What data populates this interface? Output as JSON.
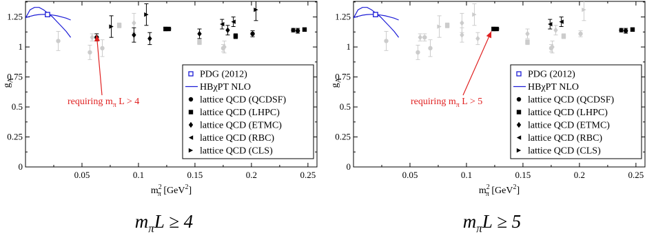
{
  "chart_data": [
    {
      "type": "scatter",
      "xlabel": "m",
      "xlabel_sub": "π",
      "xlabel_sup": "2",
      "xlabel_unit_pre": "[GeV",
      "xlabel_unit_sup": "2",
      "xlabel_unit_post": "]",
      "ylabel": "g",
      "ylabel_sub": "A",
      "xlim": [
        0,
        0.258
      ],
      "ylim": [
        0,
        1.38
      ],
      "xticks": [
        0.05,
        0.1,
        0.15,
        0.2,
        0.25
      ],
      "xtick_labels": [
        "0.05",
        "0.1",
        "0.15",
        "0.2",
        "0.25"
      ],
      "yticks": [
        0,
        0.25,
        0.5,
        0.75,
        1,
        1.25
      ],
      "ytick_labels": [
        "0",
        "0.25",
        "0.5",
        "0.75",
        "1",
        "1.25"
      ],
      "legend_position": "bottom-right",
      "legend": [
        {
          "label": "PDG (2012)",
          "marker": "open-square",
          "color": "#1a1ad6"
        },
        {
          "label": "HBχPT NLO",
          "marker": "line",
          "color": "#1a1ad6"
        },
        {
          "label": "lattice QCD (QCDSF)",
          "marker": "circle",
          "color": "#000000"
        },
        {
          "label": "lattice QCD (LHPC)",
          "marker": "square",
          "color": "#000000"
        },
        {
          "label": "lattice QCD (ETMC)",
          "marker": "diamond",
          "color": "#000000"
        },
        {
          "label": "lattice QCD (RBC)",
          "marker": "triangle-left",
          "color": "#000000"
        },
        {
          "label": "lattice QCD (CLS)",
          "marker": "triangle-right",
          "color": "#000000"
        }
      ],
      "annotation": {
        "text_pre": "requiring m",
        "text_sub": "π",
        "text_post": "L > 4",
        "arrow_to": [
          0.063,
          1.1
        ],
        "color": "#e02020"
      },
      "caption": {
        "pre": "m",
        "sub": "π",
        "post": "L ≥ 4"
      },
      "colors": {
        "active": "#000000",
        "excluded": "#cccccc",
        "theory": "#1a1ad6",
        "annotation": "#e02020"
      },
      "curve": {
        "name": "HBχPT NLO",
        "x": [
          0.0,
          0.004,
          0.008,
          0.012,
          0.016,
          0.02,
          0.024,
          0.028,
          0.032,
          0.036,
          0.04
        ],
        "y": [
          1.24,
          1.31,
          1.33,
          1.33,
          1.31,
          1.28,
          1.25,
          1.21,
          1.17,
          1.13,
          1.08
        ]
      },
      "curve2": {
        "x": [
          0.0,
          0.004,
          0.008,
          0.012,
          0.016,
          0.02,
          0.024,
          0.028,
          0.032,
          0.036,
          0.04
        ],
        "y": [
          1.245,
          1.255,
          1.265,
          1.27,
          1.272,
          1.27,
          1.266,
          1.26,
          1.25,
          1.24,
          1.225
        ]
      },
      "series": [
        {
          "name": "PDG (2012)",
          "marker": "open-square",
          "points": [
            {
              "x": 0.0195,
              "y": 1.27,
              "err": 0.003,
              "active": true
            }
          ]
        },
        {
          "name": "lattice QCD (QCDSF)",
          "marker": "circle",
          "points": [
            {
              "x": 0.029,
              "y": 1.05,
              "err": 0.08,
              "active": false
            },
            {
              "x": 0.057,
              "y": 0.955,
              "err": 0.06,
              "active": false
            },
            {
              "x": 0.063,
              "y": 1.08,
              "err": 0.03,
              "active": true
            },
            {
              "x": 0.068,
              "y": 0.99,
              "err": 0.07,
              "active": false
            },
            {
              "x": 0.127,
              "y": 1.15,
              "err": 0.015,
              "active": true
            },
            {
              "x": 0.175,
              "y": 0.99,
              "err": 0.03,
              "active": false
            },
            {
              "x": 0.201,
              "y": 1.11,
              "err": 0.025,
              "active": true
            },
            {
              "x": 0.237,
              "y": 1.14,
              "err": 0.015,
              "active": true
            },
            {
              "x": 0.241,
              "y": 1.135,
              "err": 0.02,
              "active": true
            }
          ]
        },
        {
          "name": "lattice QCD (LHPC)",
          "marker": "square",
          "points": [
            {
              "x": 0.083,
              "y": 1.18,
              "err": 0.02,
              "active": false
            },
            {
              "x": 0.124,
              "y": 1.15,
              "err": 0.015,
              "active": true
            },
            {
              "x": 0.154,
              "y": 1.04,
              "err": 0.02,
              "active": false
            },
            {
              "x": 0.186,
              "y": 1.09,
              "err": 0.02,
              "active": true
            },
            {
              "x": 0.247,
              "y": 1.145,
              "err": 0.015,
              "active": true
            }
          ]
        },
        {
          "name": "lattice QCD (ETMC)",
          "marker": "diamond",
          "points": [
            {
              "x": 0.059,
              "y": 1.08,
              "err": 0.03,
              "active": false
            },
            {
              "x": 0.096,
              "y": 1.1,
              "err": 0.06,
              "active": true
            },
            {
              "x": 0.096,
              "y": 1.2,
              "err": 0.08,
              "active": false
            },
            {
              "x": 0.11,
              "y": 1.07,
              "err": 0.05,
              "active": true
            },
            {
              "x": 0.154,
              "y": 1.11,
              "err": 0.04,
              "active": true
            },
            {
              "x": 0.176,
              "y": 1.0,
              "err": 0.05,
              "active": false
            },
            {
              "x": 0.179,
              "y": 1.14,
              "err": 0.04,
              "active": true
            }
          ]
        },
        {
          "name": "lattice QCD (RBC)",
          "marker": "triangle-left",
          "points": [
            {
              "x": 0.174,
              "y": 1.19,
              "err": 0.04,
              "active": true
            },
            {
              "x": 0.184,
              "y": 1.21,
              "err": 0.04,
              "active": true
            }
          ]
        },
        {
          "name": "lattice QCD (CLS)",
          "marker": "triangle-right",
          "points": [
            {
              "x": 0.076,
              "y": 1.17,
              "err": 0.09,
              "active": true
            },
            {
              "x": 0.107,
              "y": 1.27,
              "err": 0.09,
              "active": true
            },
            {
              "x": 0.204,
              "y": 1.31,
              "err": 0.09,
              "active": true
            }
          ]
        }
      ]
    },
    {
      "type": "scatter",
      "xlabel": "m",
      "xlabel_sub": "π",
      "xlabel_sup": "2",
      "xlabel_unit_pre": "[GeV",
      "xlabel_unit_sup": "2",
      "xlabel_unit_post": "]",
      "ylabel": "g",
      "ylabel_sub": "A",
      "xlim": [
        0,
        0.258
      ],
      "ylim": [
        0,
        1.38
      ],
      "xticks": [
        0.05,
        0.1,
        0.15,
        0.2,
        0.25
      ],
      "xtick_labels": [
        "0.05",
        "0.1",
        "0.15",
        "0.2",
        "0.25"
      ],
      "yticks": [
        0,
        0.25,
        0.5,
        0.75,
        1,
        1.25
      ],
      "ytick_labels": [
        "0",
        "0.25",
        "0.5",
        "0.75",
        "1",
        "1.25"
      ],
      "legend_position": "bottom-right",
      "legend": [
        {
          "label": "PDG (2012)",
          "marker": "open-square",
          "color": "#1a1ad6"
        },
        {
          "label": "HBχPT NLO",
          "marker": "line",
          "color": "#1a1ad6"
        },
        {
          "label": "lattice QCD (QCDSF)",
          "marker": "circle",
          "color": "#000000"
        },
        {
          "label": "lattice QCD (LHPC)",
          "marker": "square",
          "color": "#000000"
        },
        {
          "label": "lattice QCD (ETMC)",
          "marker": "diamond",
          "color": "#000000"
        },
        {
          "label": "lattice QCD (RBC)",
          "marker": "triangle-left",
          "color": "#000000"
        },
        {
          "label": "lattice QCD (CLS)",
          "marker": "triangle-right",
          "color": "#000000"
        }
      ],
      "annotation": {
        "text_pre": "requiring m",
        "text_sub": "π",
        "text_post": "L > 5",
        "arrow_to": [
          0.122,
          1.13
        ],
        "color": "#e02020"
      },
      "caption": {
        "pre": "m",
        "sub": "π",
        "post": "L ≥ 5"
      },
      "colors": {
        "active": "#000000",
        "excluded": "#cccccc",
        "theory": "#1a1ad6",
        "annotation": "#e02020"
      },
      "curve": {
        "name": "HBχPT NLO",
        "x": [
          0.0,
          0.004,
          0.008,
          0.012,
          0.016,
          0.02,
          0.024,
          0.028,
          0.032,
          0.036,
          0.04
        ],
        "y": [
          1.24,
          1.31,
          1.33,
          1.33,
          1.31,
          1.28,
          1.25,
          1.21,
          1.17,
          1.13,
          1.08
        ]
      },
      "curve2": {
        "x": [
          0.0,
          0.004,
          0.008,
          0.012,
          0.016,
          0.02,
          0.024,
          0.028,
          0.032,
          0.036,
          0.04
        ],
        "y": [
          1.245,
          1.255,
          1.265,
          1.27,
          1.272,
          1.27,
          1.266,
          1.26,
          1.25,
          1.24,
          1.225
        ]
      },
      "series": [
        {
          "name": "PDG (2012)",
          "marker": "open-square",
          "points": [
            {
              "x": 0.0195,
              "y": 1.27,
              "err": 0.003,
              "active": true
            }
          ]
        },
        {
          "name": "lattice QCD (QCDSF)",
          "marker": "circle",
          "points": [
            {
              "x": 0.029,
              "y": 1.05,
              "err": 0.08,
              "active": false
            },
            {
              "x": 0.057,
              "y": 0.955,
              "err": 0.06,
              "active": false
            },
            {
              "x": 0.063,
              "y": 1.08,
              "err": 0.03,
              "active": false
            },
            {
              "x": 0.068,
              "y": 0.99,
              "err": 0.07,
              "active": false
            },
            {
              "x": 0.127,
              "y": 1.15,
              "err": 0.015,
              "active": true
            },
            {
              "x": 0.175,
              "y": 0.99,
              "err": 0.03,
              "active": false
            },
            {
              "x": 0.201,
              "y": 1.11,
              "err": 0.025,
              "active": false
            },
            {
              "x": 0.237,
              "y": 1.14,
              "err": 0.015,
              "active": true
            },
            {
              "x": 0.241,
              "y": 1.135,
              "err": 0.02,
              "active": true
            }
          ]
        },
        {
          "name": "lattice QCD (LHPC)",
          "marker": "square",
          "points": [
            {
              "x": 0.083,
              "y": 1.18,
              "err": 0.02,
              "active": false
            },
            {
              "x": 0.124,
              "y": 1.15,
              "err": 0.015,
              "active": true
            },
            {
              "x": 0.154,
              "y": 1.04,
              "err": 0.02,
              "active": false
            },
            {
              "x": 0.186,
              "y": 1.09,
              "err": 0.02,
              "active": false
            },
            {
              "x": 0.247,
              "y": 1.145,
              "err": 0.015,
              "active": true
            }
          ]
        },
        {
          "name": "lattice QCD (ETMC)",
          "marker": "diamond",
          "points": [
            {
              "x": 0.059,
              "y": 1.08,
              "err": 0.03,
              "active": false
            },
            {
              "x": 0.096,
              "y": 1.1,
              "err": 0.06,
              "active": false
            },
            {
              "x": 0.096,
              "y": 1.2,
              "err": 0.08,
              "active": false
            },
            {
              "x": 0.11,
              "y": 1.07,
              "err": 0.05,
              "active": false
            },
            {
              "x": 0.154,
              "y": 1.11,
              "err": 0.04,
              "active": false
            },
            {
              "x": 0.176,
              "y": 1.0,
              "err": 0.05,
              "active": false
            },
            {
              "x": 0.179,
              "y": 1.14,
              "err": 0.04,
              "active": false
            }
          ]
        },
        {
          "name": "lattice QCD (RBC)",
          "marker": "triangle-left",
          "points": [
            {
              "x": 0.174,
              "y": 1.19,
              "err": 0.04,
              "active": true
            },
            {
              "x": 0.184,
              "y": 1.21,
              "err": 0.04,
              "active": true
            }
          ]
        },
        {
          "name": "lattice QCD (CLS)",
          "marker": "triangle-right",
          "points": [
            {
              "x": 0.076,
              "y": 1.17,
              "err": 0.09,
              "active": false
            },
            {
              "x": 0.107,
              "y": 1.27,
              "err": 0.09,
              "active": false
            },
            {
              "x": 0.204,
              "y": 1.31,
              "err": 0.09,
              "active": false
            }
          ]
        }
      ]
    }
  ]
}
